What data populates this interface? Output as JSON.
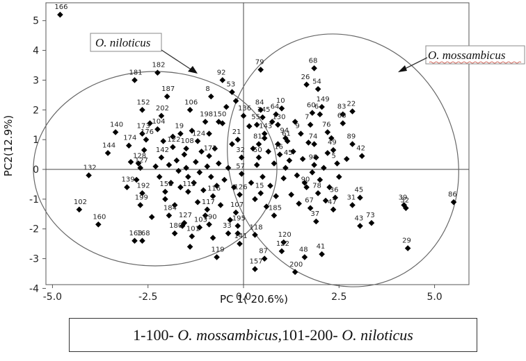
{
  "chart_data": {
    "type": "scatter",
    "xlabel": "PC 1( 20.6%)",
    "ylabel": "PC2(12.9%)",
    "xlim": [
      -5.5,
      5.9
    ],
    "ylim": [
      -4.2,
      5.6
    ],
    "x_ticks": [
      "-5.0",
      "-2.5",
      "0.0",
      "2.5",
      "5.0"
    ],
    "y_ticks": [
      "-4",
      "-3",
      "-2",
      "-1",
      "0",
      "1",
      "2",
      "3",
      "4",
      "5"
    ],
    "grid": false,
    "reference_lines": [
      0,
      0
    ],
    "marker": "diamond",
    "marker_color": "#000000",
    "points": [
      {
        "label": "166",
        "x": -4.8,
        "y": 5.2
      },
      {
        "label": "181",
        "x": -2.85,
        "y": 3.0
      },
      {
        "label": "182",
        "x": -2.25,
        "y": 3.25
      },
      {
        "label": "152",
        "x": -2.65,
        "y": 2.0
      },
      {
        "label": "187",
        "x": -2.0,
        "y": 2.45
      },
      {
        "label": "202",
        "x": -2.15,
        "y": 1.8
      },
      {
        "label": "106",
        "x": -1.4,
        "y": 2.0
      },
      {
        "label": "92",
        "x": -0.55,
        "y": 3.0
      },
      {
        "label": "8",
        "x": -0.85,
        "y": 2.45
      },
      {
        "label": "53",
        "x": -0.3,
        "y": 2.6
      },
      {
        "label": "198",
        "x": -1.0,
        "y": 1.6
      },
      {
        "label": "150",
        "x": -0.65,
        "y": 1.6
      },
      {
        "label": "136",
        "x": 0.0,
        "y": 1.8
      },
      {
        "label": "140",
        "x": -3.35,
        "y": 1.25
      },
      {
        "label": "104",
        "x": -2.25,
        "y": 1.35
      },
      {
        "label": "173",
        "x": -2.65,
        "y": 1.2
      },
      {
        "label": "176",
        "x": -2.55,
        "y": 1.0
      },
      {
        "label": "174",
        "x": -3.0,
        "y": 0.8
      },
      {
        "label": "144",
        "x": -3.55,
        "y": 0.55
      },
      {
        "label": "19",
        "x": -1.65,
        "y": 1.2
      },
      {
        "label": "124",
        "x": -1.2,
        "y": 0.95
      },
      {
        "label": "122",
        "x": -1.85,
        "y": 0.75
      },
      {
        "label": "108",
        "x": -1.5,
        "y": 0.7
      },
      {
        "label": "172",
        "x": -0.9,
        "y": 0.45
      },
      {
        "label": "142",
        "x": -2.15,
        "y": 0.4
      },
      {
        "label": "128",
        "x": -2.75,
        "y": 0.2
      },
      {
        "label": "127",
        "x": -2.7,
        "y": 0.05
      },
      {
        "label": "132",
        "x": -4.05,
        "y": -0.2
      },
      {
        "label": "139",
        "x": -3.05,
        "y": -0.6
      },
      {
        "label": "192",
        "x": -2.65,
        "y": -0.8
      },
      {
        "label": "199",
        "x": -2.7,
        "y": -1.2
      },
      {
        "label": "102",
        "x": -4.3,
        "y": -1.35
      },
      {
        "label": "160",
        "x": -3.8,
        "y": -1.85
      },
      {
        "label": "163",
        "x": -2.85,
        "y": -2.4
      },
      {
        "label": "168",
        "x": -2.65,
        "y": -2.4
      },
      {
        "label": "158",
        "x": -2.05,
        "y": -0.75
      },
      {
        "label": "115",
        "x": -1.45,
        "y": -0.75
      },
      {
        "label": "116",
        "x": -0.8,
        "y": -0.9
      },
      {
        "label": "117",
        "x": -0.95,
        "y": -1.35
      },
      {
        "label": "184",
        "x": -1.95,
        "y": -1.55
      },
      {
        "label": "127",
        "x": -1.55,
        "y": -1.8
      },
      {
        "label": "180",
        "x": -1.8,
        "y": -2.15
      },
      {
        "label": "101",
        "x": -1.35,
        "y": -2.25
      },
      {
        "label": "103",
        "x": -1.15,
        "y": -1.95
      },
      {
        "label": "190",
        "x": -0.9,
        "y": -1.85
      },
      {
        "label": "119",
        "x": -0.7,
        "y": -2.95
      },
      {
        "label": "33",
        "x": -0.4,
        "y": -2.15
      },
      {
        "label": "195",
        "x": -0.15,
        "y": -1.9
      },
      {
        "label": "141",
        "x": -0.1,
        "y": -2.5
      },
      {
        "label": "107",
        "x": -0.2,
        "y": -1.45
      },
      {
        "label": "21",
        "x": -0.15,
        "y": 1.0
      },
      {
        "label": "32",
        "x": -0.05,
        "y": 0.4
      },
      {
        "label": "57",
        "x": -0.05,
        "y": -0.15
      },
      {
        "label": "126",
        "x": -0.1,
        "y": -0.85
      },
      {
        "label": "79",
        "x": 0.45,
        "y": 3.35
      },
      {
        "label": "84",
        "x": 0.45,
        "y": 2.0
      },
      {
        "label": "145",
        "x": 0.5,
        "y": 1.75
      },
      {
        "label": "10",
        "x": 1.0,
        "y": 2.05
      },
      {
        "label": "64",
        "x": 0.85,
        "y": 1.85
      },
      {
        "label": "55",
        "x": 0.35,
        "y": 1.5
      },
      {
        "label": "143",
        "x": 0.55,
        "y": 1.2
      },
      {
        "label": "130",
        "x": 0.9,
        "y": 1.5
      },
      {
        "label": "94",
        "x": 1.1,
        "y": 1.05
      },
      {
        "label": "61",
        "x": 1.15,
        "y": 0.95
      },
      {
        "label": "81",
        "x": 0.4,
        "y": 0.85
      },
      {
        "label": "50",
        "x": 0.4,
        "y": 0.4
      },
      {
        "label": "16",
        "x": 0.95,
        "y": 0.5
      },
      {
        "label": "45",
        "x": 1.2,
        "y": 0.3
      },
      {
        "label": "15",
        "x": 0.45,
        "y": -0.8
      },
      {
        "label": "185",
        "x": 0.8,
        "y": -1.55
      },
      {
        "label": "118",
        "x": 0.3,
        "y": -2.2
      },
      {
        "label": "120",
        "x": 1.05,
        "y": -2.45
      },
      {
        "label": "122",
        "x": 1.0,
        "y": -2.75
      },
      {
        "label": "87",
        "x": 0.55,
        "y": -3.0
      },
      {
        "label": "157",
        "x": 0.3,
        "y": -3.35
      },
      {
        "label": "200",
        "x": 1.35,
        "y": -3.45
      },
      {
        "label": "48",
        "x": 1.6,
        "y": -2.95
      },
      {
        "label": "41",
        "x": 2.05,
        "y": -2.85
      },
      {
        "label": "68",
        "x": 1.85,
        "y": 3.4
      },
      {
        "label": "26",
        "x": 1.65,
        "y": 2.85
      },
      {
        "label": "54",
        "x": 1.95,
        "y": 2.7
      },
      {
        "label": "149",
        "x": 2.05,
        "y": 2.1
      },
      {
        "label": "60",
        "x": 1.8,
        "y": 1.9
      },
      {
        "label": "6",
        "x": 2.0,
        "y": 1.85
      },
      {
        "label": "83",
        "x": 2.6,
        "y": 1.85
      },
      {
        "label": "22",
        "x": 2.85,
        "y": 1.95
      },
      {
        "label": "7",
        "x": 1.75,
        "y": 1.5
      },
      {
        "label": "76",
        "x": 2.2,
        "y": 1.25
      },
      {
        "label": "66",
        "x": 2.6,
        "y": 1.55
      },
      {
        "label": "9",
        "x": 1.5,
        "y": 1.2
      },
      {
        "label": "74",
        "x": 1.85,
        "y": 0.85
      },
      {
        "label": "49",
        "x": 2.35,
        "y": 0.65
      },
      {
        "label": "89",
        "x": 2.85,
        "y": 0.85
      },
      {
        "label": "42",
        "x": 3.1,
        "y": 0.45
      },
      {
        "label": "5",
        "x": 2.45,
        "y": 0.2
      },
      {
        "label": "98",
        "x": 1.85,
        "y": 0.15
      },
      {
        "label": "90",
        "x": 1.65,
        "y": -0.6
      },
      {
        "label": "78",
        "x": 1.95,
        "y": -0.8
      },
      {
        "label": "36",
        "x": 2.4,
        "y": -0.95
      },
      {
        "label": "67",
        "x": 1.75,
        "y": -1.3
      },
      {
        "label": "47",
        "x": 2.35,
        "y": -1.35
      },
      {
        "label": "37",
        "x": 1.9,
        "y": -1.75
      },
      {
        "label": "45",
        "x": 3.05,
        "y": -0.95
      },
      {
        "label": "31",
        "x": 2.85,
        "y": -1.2
      },
      {
        "label": "43",
        "x": 3.05,
        "y": -1.9
      },
      {
        "label": "73",
        "x": 3.35,
        "y": -1.8
      },
      {
        "label": "39",
        "x": 4.2,
        "y": -1.2
      },
      {
        "label": "32",
        "x": 4.25,
        "y": -1.3
      },
      {
        "label": "29",
        "x": 4.3,
        "y": -2.65
      },
      {
        "label": "86",
        "x": 5.5,
        "y": -1.1
      },
      {
        "label": "",
        "x": -2.95,
        "y": 0.25
      },
      {
        "label": "",
        "x": -2.8,
        "y": -0.35
      },
      {
        "label": "",
        "x": -2.6,
        "y": 0.65
      },
      {
        "label": "",
        "x": -2.45,
        "y": 1.55
      },
      {
        "label": "",
        "x": -2.4,
        "y": -1.6
      },
      {
        "label": "",
        "x": -2.3,
        "y": 0.1
      },
      {
        "label": "",
        "x": -2.2,
        "y": -0.25
      },
      {
        "label": "",
        "x": -2.1,
        "y": 0.95
      },
      {
        "label": "",
        "x": -2.05,
        "y": -1.0
      },
      {
        "label": "",
        "x": -1.95,
        "y": 0.15
      },
      {
        "label": "",
        "x": -1.9,
        "y": -0.45
      },
      {
        "label": "",
        "x": -1.85,
        "y": 1.1
      },
      {
        "label": "",
        "x": -1.8,
        "y": -1.2
      },
      {
        "label": "",
        "x": -1.75,
        "y": 0.3
      },
      {
        "label": "",
        "x": -1.7,
        "y": -0.05
      },
      {
        "label": "",
        "x": -1.65,
        "y": -0.6
      },
      {
        "label": "",
        "x": -1.6,
        "y": -1.9
      },
      {
        "label": "",
        "x": -1.55,
        "y": 0.5
      },
      {
        "label": "",
        "x": -1.5,
        "y": 0.05
      },
      {
        "label": "",
        "x": -1.45,
        "y": -0.25
      },
      {
        "label": "",
        "x": -1.4,
        "y": -2.6
      },
      {
        "label": "",
        "x": -1.35,
        "y": 1.3
      },
      {
        "label": "",
        "x": -1.3,
        "y": -0.45
      },
      {
        "label": "",
        "x": -1.25,
        "y": 0.25
      },
      {
        "label": "",
        "x": -1.2,
        "y": -1.1
      },
      {
        "label": "",
        "x": -1.15,
        "y": -0.1
      },
      {
        "label": "",
        "x": -1.1,
        "y": 0.6
      },
      {
        "label": "",
        "x": -1.05,
        "y": -0.7
      },
      {
        "label": "",
        "x": -1.0,
        "y": -1.55
      },
      {
        "label": "",
        "x": -0.95,
        "y": 0.1
      },
      {
        "label": "",
        "x": -0.9,
        "y": 1.2
      },
      {
        "label": "",
        "x": -0.85,
        "y": -0.25
      },
      {
        "label": "",
        "x": -0.8,
        "y": -2.3
      },
      {
        "label": "",
        "x": -0.75,
        "y": 0.7
      },
      {
        "label": "",
        "x": -0.7,
        "y": -0.55
      },
      {
        "label": "",
        "x": -0.65,
        "y": 0.2
      },
      {
        "label": "",
        "x": -0.6,
        "y": -1.2
      },
      {
        "label": "",
        "x": -0.55,
        "y": 1.55
      },
      {
        "label": "",
        "x": -0.5,
        "y": -0.35
      },
      {
        "label": "",
        "x": -0.45,
        "y": 2.1
      },
      {
        "label": "",
        "x": -0.4,
        "y": 0.05
      },
      {
        "label": "",
        "x": -0.35,
        "y": -1.7
      },
      {
        "label": "",
        "x": -0.3,
        "y": 0.85
      },
      {
        "label": "",
        "x": -0.25,
        "y": -0.6
      },
      {
        "label": "",
        "x": -0.2,
        "y": 2.3
      },
      {
        "label": "",
        "x": -0.15,
        "y": -2.15
      },
      {
        "label": "",
        "x": 0.15,
        "y": 1.45
      },
      {
        "label": "",
        "x": 0.2,
        "y": -0.45
      },
      {
        "label": "",
        "x": 0.25,
        "y": 0.7
      },
      {
        "label": "",
        "x": 0.3,
        "y": -1.0
      },
      {
        "label": "",
        "x": 0.35,
        "y": 0.15
      },
      {
        "label": "",
        "x": 0.5,
        "y": -0.25
      },
      {
        "label": "",
        "x": 0.55,
        "y": 1.05
      },
      {
        "label": "",
        "x": 0.6,
        "y": -1.25
      },
      {
        "label": "",
        "x": 0.65,
        "y": 0.6
      },
      {
        "label": "",
        "x": 0.7,
        "y": -0.55
      },
      {
        "label": "",
        "x": 0.75,
        "y": 1.6
      },
      {
        "label": "",
        "x": 0.8,
        "y": 0.2
      },
      {
        "label": "",
        "x": 0.85,
        "y": -0.9
      },
      {
        "label": "",
        "x": 0.9,
        "y": 0.85
      },
      {
        "label": "",
        "x": 1.05,
        "y": -0.3
      },
      {
        "label": "",
        "x": 1.1,
        "y": 0.05
      },
      {
        "label": "",
        "x": 1.25,
        "y": -0.85
      },
      {
        "label": "",
        "x": 1.3,
        "y": 0.6
      },
      {
        "label": "",
        "x": 1.35,
        "y": 1.6
      },
      {
        "label": "",
        "x": 1.4,
        "y": -0.2
      },
      {
        "label": "",
        "x": 1.45,
        "y": -1.15
      },
      {
        "label": "",
        "x": 1.55,
        "y": 0.35
      },
      {
        "label": "",
        "x": 1.6,
        "y": -0.45
      },
      {
        "label": "",
        "x": 1.7,
        "y": 0.9
      },
      {
        "label": "",
        "x": 1.8,
        "y": -0.1
      },
      {
        "label": "",
        "x": 1.9,
        "y": 0.4
      },
      {
        "label": "",
        "x": 2.0,
        "y": -0.35
      },
      {
        "label": "",
        "x": 2.1,
        "y": 0.05
      },
      {
        "label": "",
        "x": 2.15,
        "y": -1.05
      },
      {
        "label": "",
        "x": 2.2,
        "y": 0.55
      },
      {
        "label": "",
        "x": 2.25,
        "y": -0.6
      },
      {
        "label": "",
        "x": 2.3,
        "y": 1.05
      },
      {
        "label": "",
        "x": 2.5,
        "y": -0.25
      },
      {
        "label": "",
        "x": 2.7,
        "y": 0.35
      }
    ]
  },
  "annotations": {
    "left_group": "O. niloticus",
    "right_group": "O. mossambicus"
  },
  "caption": {
    "range1": "1-100- ",
    "species1": "O. mossambicus,",
    "range2": " 101-200- ",
    "species2": "O. niloticus"
  }
}
